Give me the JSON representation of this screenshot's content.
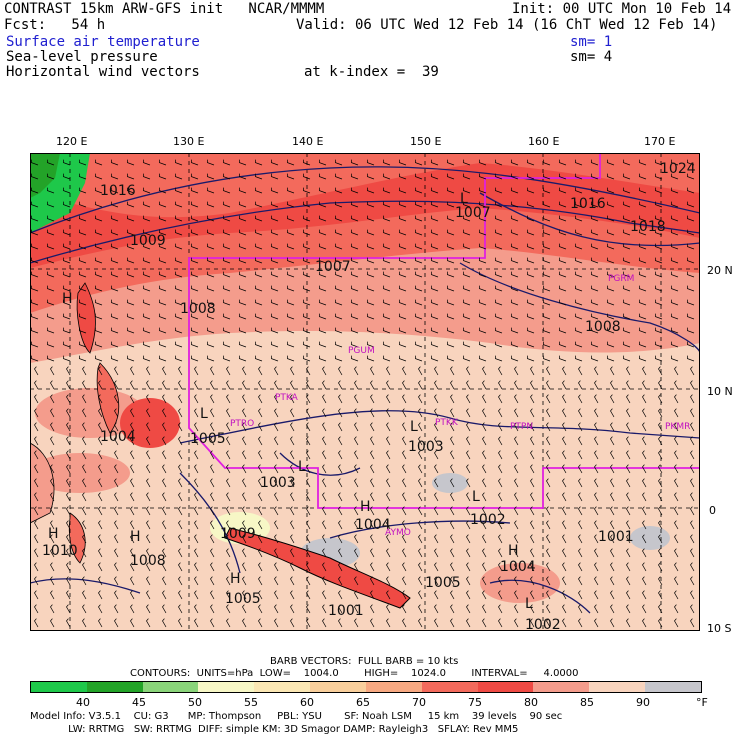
{
  "header": {
    "line1_left": "CONTRAST 15km ARW-GFS init   NCAR/MMMM",
    "line1_right": "Init: 00 UTC Mon 10 Feb 14",
    "line2_left": "Fcst:   54 h",
    "line2_right": "Valid: 06 UTC Wed 12 Feb 14 (16 ChT Wed 12 Feb 14)",
    "field1": "Surface air temperature",
    "field1_sm": "sm= 1",
    "field2": "Sea-level pressure",
    "field2_sm": "sm= 4",
    "field3": "Horizontal wind vectors",
    "field3_level": "at k-index =  39"
  },
  "axes": {
    "lon_labels": [
      "120 E",
      "130 E",
      "140 E",
      "150 E",
      "160 E",
      "170 E"
    ],
    "lat_labels": [
      "20 N",
      "10 N",
      "0",
      "10 S"
    ]
  },
  "map_labels": {
    "pressure": [
      "1016",
      "1009",
      "1007",
      "1008",
      "1016",
      "1024",
      "1018",
      "1008",
      "1007",
      "1004",
      "1005",
      "1003",
      "1003",
      "1004",
      "1002",
      "1001",
      "1010",
      "1008",
      "1009",
      "1005",
      "1004",
      "1005",
      "1001",
      "1002"
    ],
    "highs_lows": [
      "H",
      "H",
      "L",
      "L",
      "L",
      "L",
      "L",
      "H",
      "H",
      "H",
      "H",
      "L"
    ],
    "stations": [
      "PGUM",
      "PTRO",
      "PTKA",
      "PTKK",
      "PTPN",
      "PKMR",
      "PGRM",
      "AYMO"
    ]
  },
  "legend": {
    "barb_line": "BARB VECTORS:  FULL BARB = 10 kts",
    "contours_line": "CONTOURS:  UNITS=hPa  LOW=    1004.0        HIGH=    1024.0        INTERVAL=     4.0000",
    "unit": "°F",
    "color_labels": [
      "40",
      "45",
      "50",
      "55",
      "60",
      "65",
      "70",
      "75",
      "80",
      "85",
      "90"
    ],
    "colors": [
      "#1ec84a",
      "#23a328",
      "#8ad47a",
      "#f7f7c6",
      "#fbe7b4",
      "#f9cf9c",
      "#f7a982",
      "#f36a5c",
      "#ef4a44",
      "#f49c8c",
      "#f8d4be",
      "#c6c6cc"
    ]
  },
  "footer": {
    "line1": "Model Info: V3.5.1    CU: G3      MP: Thompson     PBL: YSU       SF: Noah LSM     15 km    39 levels    90 sec",
    "line2": "            LW: RRTMG   SW: RRTMG  DIFF: simple KM: 3D Smagor DAMP: Rayleigh3   SFLAY: Rev MM5"
  }
}
